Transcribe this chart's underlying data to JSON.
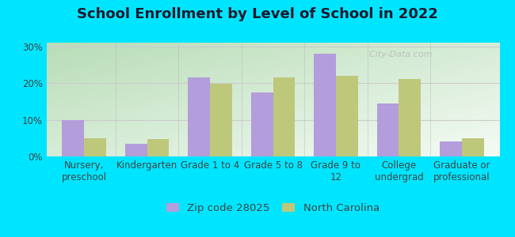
{
  "title": "School Enrollment by Level of School in 2022",
  "categories": [
    "Nursery,\npreschool",
    "Kindergarten",
    "Grade 1 to 4",
    "Grade 5 to 8",
    "Grade 9 to\n12",
    "College\nundergrad",
    "Graduate or\nprofessional"
  ],
  "zip_values": [
    9.9,
    3.5,
    21.5,
    17.5,
    28.0,
    14.5,
    4.0
  ],
  "nc_values": [
    5.0,
    4.8,
    19.8,
    21.5,
    22.0,
    21.0,
    5.0
  ],
  "zip_color": "#b39ddb",
  "nc_color": "#bec87a",
  "background_outer": "#00e5ff",
  "bg_topleft": "#e8f5e8",
  "bg_topright": "#f8fff8",
  "bg_bottomleft": "#c8e8c8",
  "bg_bottomright": "#e8f5e8",
  "title_color": "#1a1a2e",
  "tick_color": "#444444",
  "grid_color": "#cccccc",
  "ylim": [
    0,
    31
  ],
  "yticks": [
    0,
    10,
    20,
    30
  ],
  "ytick_labels": [
    "0%",
    "10%",
    "20%",
    "30%"
  ],
  "legend_zip_label": "Zip code 28025",
  "legend_nc_label": "North Carolina",
  "bar_width": 0.35,
  "title_fontsize": 13,
  "tick_fontsize": 8.5,
  "legend_fontsize": 9.5,
  "watermark": "  City-Data.com"
}
